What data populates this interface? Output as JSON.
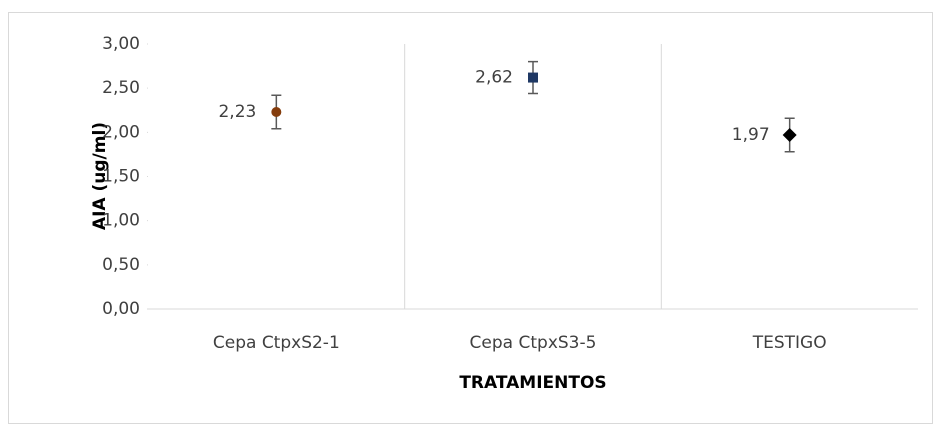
{
  "chart_data": {
    "type": "scatter",
    "x_label": "TRATAMIENTOS",
    "y_label": "AIA (ug/ml)",
    "categories": [
      "Cepa CtpxS2-1",
      "Cepa CtpxS3-5",
      "TESTIGO"
    ],
    "values": [
      2.23,
      2.62,
      1.97
    ],
    "value_labels": [
      "2,23",
      "2,62",
      "1,97"
    ],
    "errors": [
      0.19,
      0.18,
      0.19
    ],
    "markers": [
      "circle",
      "square",
      "diamond"
    ],
    "colors": [
      "#843c0c",
      "#1f3864",
      "#000000"
    ],
    "ylim": [
      0,
      3
    ],
    "yticks": [
      {
        "value": 0,
        "label": "0,00"
      },
      {
        "value": 0.5,
        "label": "0,50"
      },
      {
        "value": 1,
        "label": "1,00"
      },
      {
        "value": 1.5,
        "label": "1,50"
      },
      {
        "value": 2,
        "label": "2,00"
      },
      {
        "value": 2.5,
        "label": "2,50"
      },
      {
        "value": 3,
        "label": "3,00"
      }
    ]
  }
}
